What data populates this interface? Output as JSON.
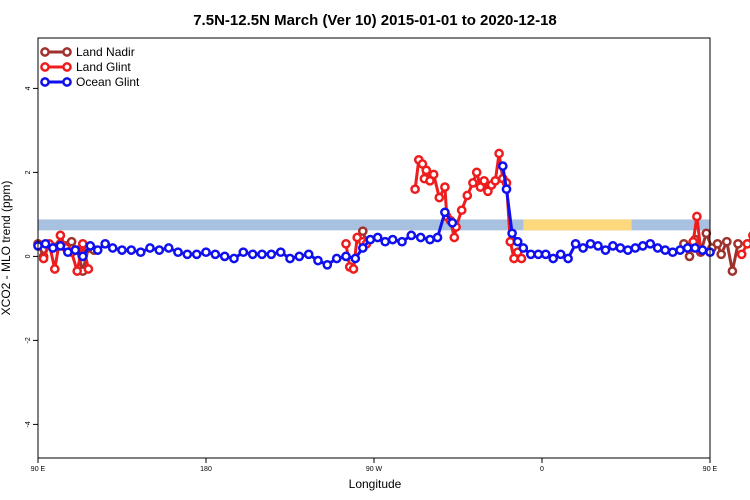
{
  "chart_data": {
    "type": "line",
    "title": "7.5N-12.5N March (Ver 10)   2015-01-01 to 2020-12-18",
    "xlabel": "Longitude",
    "ylabel": "XCO2 - MLO trend (ppm)",
    "xlim": [
      90,
      450
    ],
    "ylim": [
      -4.8,
      5.2
    ],
    "x_ticks": [
      {
        "value": 90,
        "label": "90 E"
      },
      {
        "value": 180,
        "label": "180"
      },
      {
        "value": 270,
        "label": "90 W"
      },
      {
        "value": 360,
        "label": "0"
      },
      {
        "value": 450,
        "label": "90 E"
      },
      {
        "value": 540,
        "label": "180"
      }
    ],
    "y_ticks": [
      {
        "value": -4,
        "label": "-4"
      },
      {
        "value": -2,
        "label": "-2"
      },
      {
        "value": 0,
        "label": "0"
      },
      {
        "value": 2,
        "label": "2"
      },
      {
        "value": 4,
        "label": "4"
      }
    ],
    "legend_position": "top-left",
    "land_mask_band": {
      "y_range": [
        0.62,
        0.88
      ],
      "ocean_color": "#a9c1e0",
      "land_color": "#fbd97c",
      "land_segments": [
        [
          350,
          408
        ]
      ]
    },
    "series": [
      {
        "name": "Land Nadir",
        "color": "#a0322d",
        "segments": [
          [
            [
              90,
              0.3
            ],
            [
              93,
              0.0
            ],
            [
              96,
              0.28
            ],
            [
              99,
              0.22
            ],
            [
              102,
              0.3
            ],
            [
              105,
              0.25
            ],
            [
              108,
              0.35
            ],
            [
              111,
              0.15
            ],
            [
              114,
              -0.35
            ],
            [
              117,
              0.2
            ],
            [
              120,
              0.15
            ]
          ],
          [
            [
              264,
              0.6
            ],
            [
              266,
              0.35
            ]
          ],
          [
            [
              436,
              0.3
            ],
            [
              439,
              0.0
            ],
            [
              442,
              0.4
            ],
            [
              445,
              0.1
            ],
            [
              448,
              0.55
            ],
            [
              451,
              0.2
            ],
            [
              454,
              0.3
            ],
            [
              456,
              0.05
            ],
            [
              459,
              0.35
            ],
            [
              462,
              -0.35
            ],
            [
              465,
              0.3
            ]
          ]
        ]
      },
      {
        "name": "Land Glint",
        "color": "#ee1c1c",
        "segments": [
          [
            [
              93,
              -0.05
            ],
            [
              96,
              0.3
            ],
            [
              99,
              -0.3
            ],
            [
              102,
              0.5
            ],
            [
              105,
              0.2
            ],
            [
              108,
              0.1
            ],
            [
              111,
              -0.35
            ],
            [
              114,
              0.3
            ],
            [
              117,
              -0.3
            ]
          ],
          [
            [
              255,
              0.3
            ],
            [
              257,
              -0.25
            ],
            [
              259,
              -0.3
            ],
            [
              261,
              0.45
            ],
            [
              264,
              0.35
            ],
            [
              266,
              0.3
            ]
          ],
          [
            [
              292,
              1.6
            ],
            [
              294,
              2.3
            ],
            [
              296,
              2.2
            ],
            [
              297,
              1.85
            ],
            [
              298,
              2.05
            ],
            [
              300,
              1.8
            ],
            [
              302,
              1.95
            ],
            [
              305,
              1.4
            ],
            [
              308,
              1.65
            ],
            [
              309,
              0.95
            ],
            [
              311,
              0.85
            ],
            [
              313,
              0.45
            ],
            [
              314,
              0.7
            ],
            [
              317,
              1.1
            ],
            [
              320,
              1.45
            ],
            [
              323,
              1.75
            ],
            [
              325,
              2.0
            ],
            [
              327,
              1.65
            ],
            [
              329,
              1.8
            ],
            [
              331,
              1.55
            ],
            [
              333,
              1.7
            ],
            [
              335,
              1.8
            ],
            [
              337,
              2.45
            ],
            [
              339,
              1.85
            ],
            [
              341,
              1.75
            ],
            [
              343,
              0.35
            ],
            [
              345,
              -0.05
            ],
            [
              347,
              0.1
            ],
            [
              349,
              -0.05
            ]
          ],
          [
            [
              441,
              0.35
            ],
            [
              443,
              0.95
            ],
            [
              445,
              0.15
            ]
          ],
          [
            [
              467,
              0.05
            ],
            [
              470,
              0.3
            ],
            [
              473,
              0.5
            ],
            [
              476,
              0.15
            ],
            [
              478,
              -0.3
            ],
            [
              481,
              0.2
            ],
            [
              484,
              -0.2
            ],
            [
              486,
              0.25
            ],
            [
              488,
              -0.05
            ]
          ]
        ]
      },
      {
        "name": "Ocean Glint",
        "color": "#1010ee",
        "segments": [
          [
            [
              90,
              0.25
            ],
            [
              94,
              0.3
            ],
            [
              98,
              0.2
            ],
            [
              102,
              0.25
            ],
            [
              106,
              0.1
            ],
            [
              110,
              0.15
            ],
            [
              114,
              0.0
            ],
            [
              118,
              0.25
            ],
            [
              122,
              0.15
            ],
            [
              126,
              0.3
            ],
            [
              130,
              0.2
            ],
            [
              135,
              0.15
            ],
            [
              140,
              0.15
            ],
            [
              145,
              0.1
            ],
            [
              150,
              0.2
            ],
            [
              155,
              0.15
            ],
            [
              160,
              0.2
            ],
            [
              165,
              0.1
            ],
            [
              170,
              0.05
            ],
            [
              175,
              0.05
            ],
            [
              180,
              0.1
            ],
            [
              185,
              0.05
            ],
            [
              190,
              0.0
            ],
            [
              195,
              -0.05
            ],
            [
              200,
              0.1
            ],
            [
              205,
              0.05
            ],
            [
              210,
              0.05
            ],
            [
              215,
              0.05
            ],
            [
              220,
              0.1
            ],
            [
              225,
              -0.05
            ],
            [
              230,
              0.0
            ],
            [
              235,
              0.05
            ],
            [
              240,
              -0.1
            ],
            [
              245,
              -0.2
            ],
            [
              250,
              -0.05
            ],
            [
              255,
              0.0
            ],
            [
              260,
              -0.05
            ],
            [
              264,
              0.2
            ],
            [
              268,
              0.4
            ],
            [
              272,
              0.45
            ],
            [
              276,
              0.35
            ],
            [
              280,
              0.4
            ],
            [
              285,
              0.35
            ],
            [
              290,
              0.5
            ],
            [
              295,
              0.45
            ],
            [
              300,
              0.4
            ],
            [
              304,
              0.45
            ],
            [
              308,
              1.05
            ],
            [
              312,
              0.8
            ]
          ],
          [
            [
              339,
              2.15
            ],
            [
              341,
              1.6
            ],
            [
              344,
              0.55
            ],
            [
              347,
              0.35
            ],
            [
              350,
              0.2
            ],
            [
              354,
              0.05
            ],
            [
              358,
              0.05
            ],
            [
              362,
              0.05
            ],
            [
              366,
              -0.05
            ],
            [
              370,
              0.05
            ],
            [
              374,
              -0.05
            ],
            [
              378,
              0.3
            ],
            [
              382,
              0.2
            ],
            [
              386,
              0.3
            ],
            [
              390,
              0.25
            ],
            [
              394,
              0.15
            ],
            [
              398,
              0.25
            ],
            [
              402,
              0.2
            ],
            [
              406,
              0.15
            ],
            [
              410,
              0.2
            ],
            [
              414,
              0.25
            ],
            [
              418,
              0.3
            ],
            [
              422,
              0.2
            ],
            [
              426,
              0.15
            ],
            [
              430,
              0.1
            ],
            [
              434,
              0.15
            ],
            [
              438,
              0.2
            ],
            [
              442,
              0.2
            ],
            [
              446,
              0.15
            ],
            [
              450,
              0.1
            ]
          ]
        ]
      }
    ]
  }
}
